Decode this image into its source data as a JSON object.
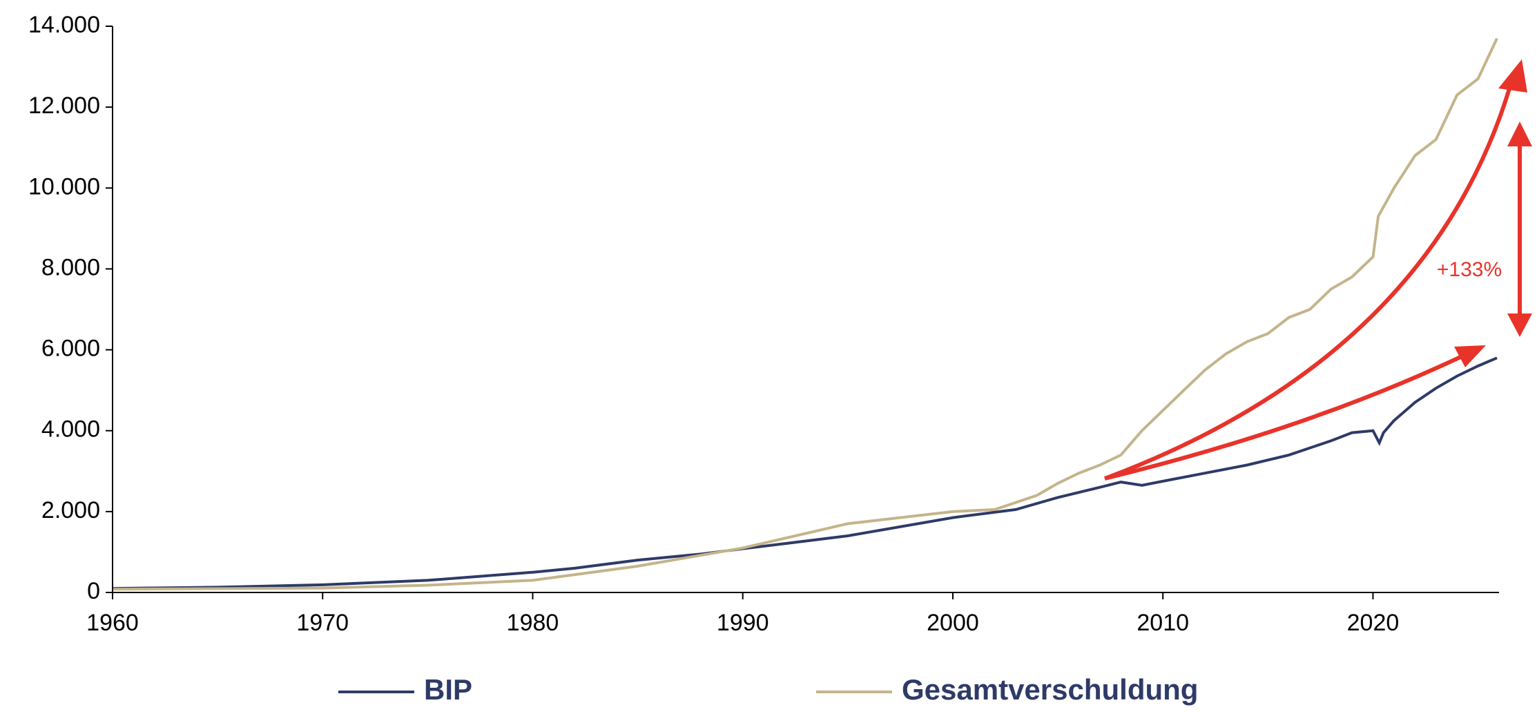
{
  "chart_data": {
    "type": "line",
    "annotation": "+133%",
    "xlim": [
      1960,
      2026
    ],
    "xticks": [
      1960,
      1970,
      1980,
      1990,
      2000,
      2010,
      2020
    ],
    "ylim": [
      0,
      14000
    ],
    "yticks": [
      0,
      {
        "value": 2000,
        "label": "2.000"
      },
      {
        "value": 4000,
        "label": "4.000"
      },
      {
        "value": 6000,
        "label": "6.000"
      },
      {
        "value": 8000,
        "label": "8.000"
      },
      {
        "value": 10000,
        "label": "10.000"
      },
      {
        "value": 12000,
        "label": "12.000"
      },
      {
        "value": 14000,
        "label": "14.000"
      }
    ],
    "grid": false,
    "legend": "bottom",
    "series": [
      {
        "name": "BIP",
        "color": "#2e3a68",
        "x": [
          1960,
          1965,
          1970,
          1975,
          1980,
          1982,
          1985,
          1988,
          1990,
          1995,
          2000,
          2003,
          2005,
          2007,
          2008,
          2009,
          2010,
          2012,
          2014,
          2016,
          2018,
          2019,
          2020,
          2020.3,
          2020.5,
          2021,
          2022,
          2023,
          2024,
          2025,
          2025.9
        ],
        "values": [
          100,
          130,
          190,
          300,
          500,
          600,
          800,
          950,
          1080,
          1400,
          1850,
          2050,
          2350,
          2600,
          2730,
          2650,
          2750,
          2950,
          3150,
          3400,
          3750,
          3950,
          4000,
          3700,
          3950,
          4250,
          4700,
          5050,
          5350,
          5600,
          5800
        ]
      },
      {
        "name": "Gesamtverschuldung",
        "color": "#c4b48a",
        "x": [
          1960,
          1970,
          1975,
          1980,
          1985,
          1990,
          1995,
          2000,
          2002,
          2004,
          2005,
          2006,
          2007,
          2008,
          2009,
          2010,
          2011,
          2012,
          2013,
          2014,
          2015,
          2016,
          2017,
          2018,
          2019,
          2020,
          2020.25,
          2021,
          2022,
          2023,
          2024,
          2025,
          2025.9
        ],
        "values": [
          80,
          110,
          180,
          300,
          650,
          1100,
          1700,
          2000,
          2050,
          2400,
          2700,
          2950,
          3150,
          3400,
          4000,
          4500,
          5000,
          5500,
          5900,
          6200,
          6400,
          6800,
          7000,
          7500,
          7800,
          8300,
          9300,
          10000,
          10800,
          11200,
          12300,
          12700,
          13700
        ]
      }
    ]
  }
}
